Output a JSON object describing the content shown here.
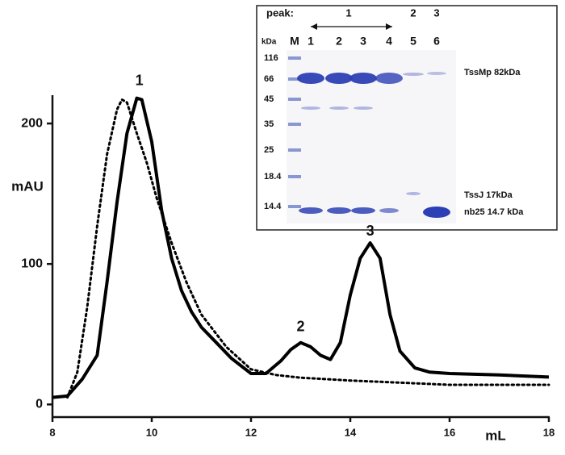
{
  "chart_data": {
    "type": "line",
    "x_label": "mL",
    "y_label": "mAU",
    "xlim": [
      8,
      18
    ],
    "xticks": [
      8,
      10,
      12,
      14,
      16,
      18
    ],
    "ylim": [
      -9,
      219
    ],
    "yticks": [
      0,
      100,
      200
    ],
    "series": [
      {
        "color": "#000000",
        "style": "solid",
        "x": [
          8,
          8.3,
          8.6,
          8.9,
          9.1,
          9.3,
          9.5,
          9.7,
          9.8,
          10.0,
          10.2,
          10.4,
          10.6,
          10.8,
          11.0,
          11.3,
          11.6,
          12.0,
          12.3,
          12.6,
          12.8,
          13.0,
          13.2,
          13.4,
          13.6,
          13.8,
          14.0,
          14.2,
          14.4,
          14.6,
          14.8,
          15.0,
          15.3,
          15.6,
          16.0,
          17.0,
          18.0
        ],
        "values": [
          5,
          6,
          18,
          35,
          87,
          144,
          193,
          218,
          217,
          187,
          138,
          104,
          81,
          66,
          55,
          44,
          33,
          22,
          22,
          31,
          39,
          44,
          41,
          35,
          32,
          44,
          78,
          104,
          115,
          104,
          64,
          38,
          26,
          23,
          22,
          21,
          19.5
        ]
      },
      {
        "color": "#000000",
        "style": "dotted",
        "x": [
          8.3,
          8.5,
          8.7,
          8.9,
          9.1,
          9.3,
          9.4,
          9.5,
          9.7,
          9.9,
          10.1,
          10.4,
          10.7,
          11.0,
          11.5,
          12.0,
          12.5,
          13.0,
          14.0,
          15.0,
          16.0,
          18.0
        ],
        "values": [
          5,
          23,
          69,
          127,
          178,
          210,
          217,
          215,
          193,
          172,
          147,
          115,
          87,
          64,
          41,
          25,
          21,
          19,
          17,
          15.5,
          14,
          14
        ]
      }
    ],
    "annotations": [
      {
        "text": "1",
        "x": 9.75,
        "y": 230
      },
      {
        "text": "2",
        "x": 13.0,
        "y": 55
      },
      {
        "text": "3",
        "x": 14.4,
        "y": 123
      }
    ]
  },
  "inset": {
    "peak_label": "peak:",
    "peak_groups": [
      "1",
      "2",
      "3"
    ],
    "kda_label": "kDa",
    "lanes": [
      "M",
      "1",
      "2",
      "3",
      "4",
      "5",
      "6"
    ],
    "markers": [
      "116",
      "66",
      "45",
      "35",
      "25",
      "18.4",
      "14.4"
    ],
    "band_labels": [
      "TssMp  82kDa",
      "TssJ  17kDa",
      "nb25 14.7 kDa"
    ]
  }
}
